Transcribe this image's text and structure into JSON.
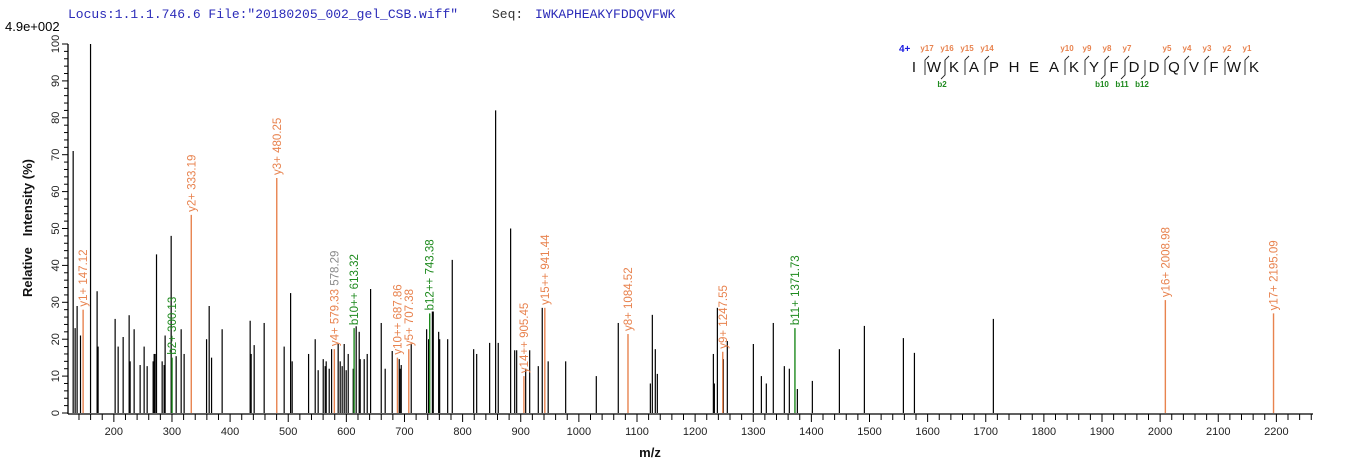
{
  "header": {
    "locus_file": "Locus:1.1.1.746.6 File:\"20180205_002_gel_CSB.wiff\"",
    "seq_label": "Seq:",
    "sequence": "IWKAPHEAKYFDDQVFWK",
    "max_intensity": "4.9e+002"
  },
  "colors": {
    "header_blue": "#2a2ab8",
    "y_ion": "#e8834f",
    "b_ion": "#1e8a1e",
    "other_ion": "#8a8a8a",
    "peak": "#000000",
    "charge": "#1a1ae0"
  },
  "sequence_map": {
    "charge": "4+",
    "residues": [
      "I",
      "W",
      "K",
      "A",
      "P",
      "H",
      "E",
      "A",
      "K",
      "Y",
      "F",
      "D",
      "D",
      "Q",
      "V",
      "F",
      "W",
      "K"
    ],
    "y_ions": [
      17,
      16,
      15,
      14,
      10,
      9,
      8,
      7,
      5,
      4,
      3,
      2,
      1
    ],
    "b_ions": [
      2,
      10,
      11,
      12
    ]
  },
  "chart_data": {
    "type": "bar",
    "subtype": "mass-spectrum",
    "xlabel": "m/z",
    "ylabel": "Relative   Intensity (%)",
    "xlim": [
      128,
      2263
    ],
    "ylim": [
      0,
      100
    ],
    "x_major_ticks": [
      200,
      300,
      400,
      500,
      600,
      700,
      800,
      900,
      1000,
      1100,
      1200,
      1300,
      1400,
      1500,
      1600,
      1700,
      1800,
      1900,
      2000,
      2100,
      2200
    ],
    "x_minor_step": 20,
    "y_major_ticks": [
      0,
      10,
      20,
      30,
      40,
      50,
      60,
      70,
      80,
      90,
      100
    ],
    "y_minor_step": 2,
    "grid": false,
    "peaks": [
      [
        130,
        71
      ],
      [
        133.4,
        23
      ],
      [
        136.8,
        29
      ],
      [
        142.6,
        21
      ],
      [
        159.9,
        100
      ],
      [
        171.2,
        33
      ],
      [
        172.9,
        18
      ],
      [
        202.2,
        25.5
      ],
      [
        207.4,
        18
      ],
      [
        216,
        20.6
      ],
      [
        226.3,
        26.5
      ],
      [
        228,
        14
      ],
      [
        234.9,
        22.7
      ],
      [
        245.2,
        13
      ],
      [
        252.1,
        18
      ],
      [
        257.3,
        12.7
      ],
      [
        267.6,
        14
      ],
      [
        269.3,
        16
      ],
      [
        271,
        16
      ],
      [
        273.4,
        43
      ],
      [
        283.1,
        14
      ],
      [
        286.5,
        13
      ],
      [
        288.2,
        21
      ],
      [
        298.6,
        48
      ],
      [
        307.2,
        15.4
      ],
      [
        315.8,
        22.7
      ],
      [
        320.9,
        16
      ],
      [
        359.5,
        20
      ],
      [
        364,
        29
      ],
      [
        368.1,
        15
      ],
      [
        386.3,
        22.7
      ],
      [
        434.5,
        25
      ],
      [
        436.2,
        16
      ],
      [
        441.4,
        18.4
      ],
      [
        458.6,
        24.4
      ],
      [
        493,
        18
      ],
      [
        504.1,
        32.5
      ],
      [
        506.8,
        14
      ],
      [
        535,
        16
      ],
      [
        546.4,
        20
      ],
      [
        551.5,
        11.6
      ],
      [
        560.2,
        14.6
      ],
      [
        563.6,
        12.7
      ],
      [
        565.3,
        14
      ],
      [
        570.5,
        12
      ],
      [
        574.6,
        17.3
      ],
      [
        585.9,
        18.7
      ],
      [
        589.4,
        14
      ],
      [
        592.8,
        12.7
      ],
      [
        596.3,
        18.7
      ],
      [
        599.7,
        11.6
      ],
      [
        603.2,
        16
      ],
      [
        611.8,
        12
      ],
      [
        616.9,
        23.5
      ],
      [
        622.1,
        22
      ],
      [
        623.8,
        14.6
      ],
      [
        630.7,
        14.6
      ],
      [
        635.9,
        16
      ],
      [
        641.7,
        33.6
      ],
      [
        660,
        24.4
      ],
      [
        666.8,
        12
      ],
      [
        678.9,
        16.8
      ],
      [
        691,
        14.6
      ],
      [
        692.5,
        12
      ],
      [
        694.4,
        13
      ],
      [
        711.6,
        18.7
      ],
      [
        738.1,
        22.7
      ],
      [
        741.5,
        20
      ],
      [
        748,
        27.5
      ],
      [
        749.5,
        27.5
      ],
      [
        758.8,
        22
      ],
      [
        760.5,
        20
      ],
      [
        774.3,
        20
      ],
      [
        782.2,
        41.5
      ],
      [
        819,
        17.3
      ],
      [
        824.2,
        16
      ],
      [
        846.5,
        19
      ],
      [
        856.8,
        82
      ],
      [
        861.3,
        19
      ],
      [
        882.6,
        50
      ],
      [
        889.6,
        17
      ],
      [
        893,
        17
      ],
      [
        908.5,
        12
      ],
      [
        915.4,
        17
      ],
      [
        930.2,
        12.7
      ],
      [
        937,
        28.5
      ],
      [
        947.2,
        14
      ],
      [
        977.3,
        14
      ],
      [
        1030,
        10
      ],
      [
        1067.8,
        24.4
      ],
      [
        1123,
        8
      ],
      [
        1126.4,
        26.6
      ],
      [
        1131.5,
        17.3
      ],
      [
        1135,
        10.6
      ],
      [
        1231.4,
        16
      ],
      [
        1233.1,
        8
      ],
      [
        1238.3,
        28.5
      ],
      [
        1248.6,
        14.6
      ],
      [
        1255.4,
        19.5
      ],
      [
        1300.2,
        18.7
      ],
      [
        1314,
        10
      ],
      [
        1322.5,
        8
      ],
      [
        1334.5,
        24.4
      ],
      [
        1353.5,
        12.7
      ],
      [
        1362.1,
        12
      ],
      [
        1375.9,
        6.5
      ],
      [
        1401.7,
        8.7
      ],
      [
        1448.2,
        17.3
      ],
      [
        1491.2,
        23.6
      ],
      [
        1558.3,
        20.3
      ],
      [
        1577.3,
        16.3
      ],
      [
        1713.1,
        25.5
      ]
    ],
    "annotations": [
      {
        "mz": 147.12,
        "intensity": 28,
        "label": "y1+ 147.12",
        "ion": "y"
      },
      {
        "mz": 300.13,
        "intensity": 15,
        "label": "b2+ 300.13",
        "ion": "b"
      },
      {
        "mz": 333.19,
        "intensity": 53.7,
        "label": "y2+ 333.19",
        "ion": "y"
      },
      {
        "mz": 480.25,
        "intensity": 63.7,
        "label": "y3+ 480.25",
        "ion": "y"
      },
      {
        "mz": 579.33,
        "intensity": 17.3,
        "label": "y4+ 579.33",
        "extra": " 578.29",
        "ion": "y"
      },
      {
        "mz": 613.32,
        "intensity": 23,
        "label": "b10++ 613.32",
        "ion": "b"
      },
      {
        "mz": 687.86,
        "intensity": 15,
        "label": "y10++ 687.86",
        "ion": "y"
      },
      {
        "mz": 707.38,
        "intensity": 17.3,
        "label": "y5+ 707.38",
        "ion": "y"
      },
      {
        "mz": 743.38,
        "intensity": 27,
        "label": "b12++ 743.38",
        "ion": "b"
      },
      {
        "mz": 905.45,
        "intensity": 10,
        "label": "y14++ 905.45",
        "ion": "y"
      },
      {
        "mz": 941.44,
        "intensity": 28.5,
        "label": "y15++ 941.44",
        "ion": "y"
      },
      {
        "mz": 1084.52,
        "intensity": 21.4,
        "label": "y8+ 1084.52",
        "ion": "y"
      },
      {
        "mz": 1247.55,
        "intensity": 16.6,
        "label": "y9+ 1247.55",
        "ion": "y"
      },
      {
        "mz": 1371.73,
        "intensity": 23,
        "label": "b11+ 1371.73",
        "ion": "b"
      },
      {
        "mz": 2008.98,
        "intensity": 30.6,
        "label": "y16+ 2008.98",
        "ion": "y"
      },
      {
        "mz": 2195.09,
        "intensity": 27,
        "label": "y17+ 2195.09",
        "ion": "y"
      }
    ]
  }
}
